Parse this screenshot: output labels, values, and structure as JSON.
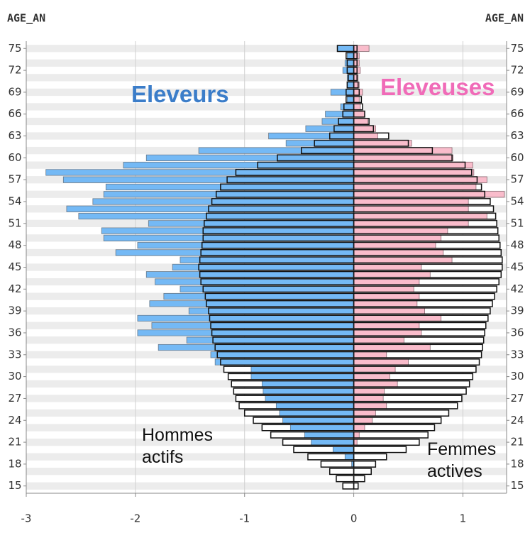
{
  "chart_data": {
    "type": "pyramid",
    "y_title": "AGE_AN",
    "y": [
      75,
      74,
      73,
      72,
      71,
      70,
      69,
      68,
      67,
      66,
      65,
      64,
      63,
      62,
      61,
      60,
      59,
      58,
      57,
      56,
      55,
      54,
      53,
      52,
      51,
      50,
      49,
      48,
      47,
      46,
      45,
      44,
      43,
      42,
      41,
      40,
      39,
      38,
      37,
      36,
      35,
      34,
      33,
      32,
      31,
      30,
      29,
      28,
      27,
      26,
      25,
      24,
      23,
      22,
      21,
      20,
      19,
      18,
      17,
      16,
      15
    ],
    "series": [
      {
        "name": "Eleveurs",
        "color": "#74b9f5",
        "label_color": "#3b7dc9",
        "values": [
          -0.15,
          -0.06,
          -0.08,
          -0.1,
          -0.06,
          -0.06,
          -0.21,
          -0.06,
          -0.12,
          -0.26,
          -0.29,
          -0.44,
          -0.78,
          -0.62,
          -1.42,
          -1.9,
          -2.11,
          -2.82,
          -2.66,
          -2.27,
          -2.29,
          -2.39,
          -2.63,
          -2.52,
          -1.88,
          -2.31,
          -2.29,
          -1.98,
          -2.18,
          -1.59,
          -1.66,
          -1.9,
          -1.82,
          -1.59,
          -1.74,
          -1.87,
          -1.51,
          -1.98,
          -1.85,
          -1.98,
          -1.53,
          -1.79,
          -1.31,
          -1.27,
          -0.94,
          -0.94,
          -0.84,
          -0.83,
          -0.81,
          -0.71,
          -0.68,
          -0.65,
          -0.58,
          -0.45,
          -0.39,
          -0.19,
          -0.08,
          -0.02,
          0,
          0,
          0
        ]
      },
      {
        "name": "Eleveuses",
        "color": "#f9bccb",
        "label_color": "#f06bb8",
        "values": [
          0.14,
          0.05,
          0.05,
          0.06,
          0.04,
          0.05,
          0.08,
          0.05,
          0.06,
          0.1,
          0.13,
          0.2,
          0.22,
          0.53,
          0.9,
          0.91,
          1.09,
          1.1,
          1.22,
          1.12,
          1.38,
          1.05,
          1.05,
          1.22,
          1.05,
          0.86,
          0.8,
          0.75,
          0.82,
          0.9,
          0.62,
          0.7,
          0.6,
          0.55,
          0.6,
          0.58,
          0.65,
          0.8,
          0.6,
          0.62,
          0.46,
          0.7,
          0.3,
          0.5,
          0.38,
          0.33,
          0.4,
          0.28,
          0.27,
          0.3,
          0.2,
          0.17,
          0.1,
          0.05,
          0.03,
          0,
          0,
          0,
          0,
          0,
          0
        ]
      },
      {
        "name": "Hommes actifs",
        "color": "#ffffff",
        "label_color": "#111111",
        "values": [
          -0.15,
          -0.07,
          -0.06,
          -0.06,
          -0.05,
          -0.06,
          -0.07,
          -0.07,
          -0.09,
          -0.1,
          -0.14,
          -0.18,
          -0.22,
          -0.36,
          -0.48,
          -0.7,
          -0.88,
          -1.08,
          -1.16,
          -1.22,
          -1.26,
          -1.3,
          -1.33,
          -1.35,
          -1.37,
          -1.38,
          -1.38,
          -1.39,
          -1.4,
          -1.41,
          -1.42,
          -1.41,
          -1.4,
          -1.38,
          -1.36,
          -1.35,
          -1.33,
          -1.32,
          -1.31,
          -1.3,
          -1.29,
          -1.27,
          -1.25,
          -1.22,
          -1.19,
          -1.15,
          -1.12,
          -1.1,
          -1.08,
          -1.05,
          -1.0,
          -0.92,
          -0.84,
          -0.76,
          -0.65,
          -0.55,
          -0.42,
          -0.3,
          -0.22,
          -0.16,
          -0.1
        ]
      },
      {
        "name": "Femmes actives",
        "color": "#ffffff",
        "label_color": "#111111",
        "values": [
          0.03,
          0.03,
          0.03,
          0.03,
          0.03,
          0.04,
          0.05,
          0.07,
          0.08,
          0.1,
          0.14,
          0.18,
          0.32,
          0.5,
          0.72,
          0.9,
          1.02,
          1.08,
          1.13,
          1.17,
          1.2,
          1.25,
          1.28,
          1.3,
          1.31,
          1.32,
          1.33,
          1.34,
          1.35,
          1.36,
          1.36,
          1.35,
          1.33,
          1.31,
          1.29,
          1.27,
          1.25,
          1.23,
          1.21,
          1.2,
          1.19,
          1.18,
          1.17,
          1.15,
          1.12,
          1.09,
          1.06,
          1.03,
          0.99,
          0.95,
          0.87,
          0.8,
          0.74,
          0.68,
          0.6,
          0.48,
          0.3,
          0.2,
          0.16,
          0.1,
          0.04
        ]
      }
    ],
    "xlim": [
      -3,
      1.4
    ],
    "xticks": [
      -3,
      -2,
      -1,
      0,
      1
    ],
    "ylim": [
      14,
      76
    ],
    "yticks": [
      75,
      72,
      69,
      66,
      63,
      60,
      57,
      54,
      51,
      48,
      45,
      42,
      39,
      36,
      33,
      30,
      27,
      24,
      21,
      18,
      15
    ],
    "grid": true
  }
}
